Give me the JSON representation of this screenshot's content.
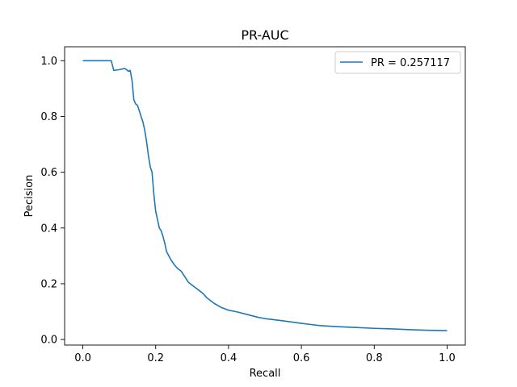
{
  "chart_data": {
    "type": "line",
    "title": "PR-AUC",
    "xlabel": "Recall",
    "ylabel": "Pecision",
    "xlim": [
      -0.05,
      1.05
    ],
    "ylim": [
      -0.02,
      1.05
    ],
    "xticks": [
      0.0,
      0.2,
      0.4,
      0.6,
      0.8,
      1.0
    ],
    "xtick_labels": [
      "0.0",
      "0.2",
      "0.4",
      "0.6",
      "0.8",
      "1.0"
    ],
    "yticks": [
      0.0,
      0.2,
      0.4,
      0.6,
      0.8,
      1.0
    ],
    "ytick_labels": [
      "0.0",
      "0.2",
      "0.4",
      "0.6",
      "0.8",
      "1.0"
    ],
    "grid": false,
    "legend_position": "top-right",
    "series": [
      {
        "name": "PR = 0.257117",
        "color": "#1f77b4",
        "points": [
          [
            0.0,
            1.0
          ],
          [
            0.03,
            1.0
          ],
          [
            0.06,
            1.0
          ],
          [
            0.078,
            1.0
          ],
          [
            0.085,
            0.965
          ],
          [
            0.1,
            0.968
          ],
          [
            0.115,
            0.972
          ],
          [
            0.12,
            0.968
          ],
          [
            0.125,
            0.962
          ],
          [
            0.13,
            0.965
          ],
          [
            0.135,
            0.93
          ],
          [
            0.14,
            0.86
          ],
          [
            0.145,
            0.845
          ],
          [
            0.15,
            0.84
          ],
          [
            0.155,
            0.82
          ],
          [
            0.16,
            0.8
          ],
          [
            0.165,
            0.78
          ],
          [
            0.17,
            0.75
          ],
          [
            0.175,
            0.71
          ],
          [
            0.18,
            0.66
          ],
          [
            0.185,
            0.62
          ],
          [
            0.19,
            0.6
          ],
          [
            0.195,
            0.52
          ],
          [
            0.2,
            0.46
          ],
          [
            0.205,
            0.43
          ],
          [
            0.21,
            0.4
          ],
          [
            0.215,
            0.39
          ],
          [
            0.22,
            0.37
          ],
          [
            0.225,
            0.345
          ],
          [
            0.23,
            0.315
          ],
          [
            0.24,
            0.29
          ],
          [
            0.25,
            0.27
          ],
          [
            0.26,
            0.255
          ],
          [
            0.27,
            0.245
          ],
          [
            0.28,
            0.225
          ],
          [
            0.29,
            0.205
          ],
          [
            0.3,
            0.195
          ],
          [
            0.31,
            0.185
          ],
          [
            0.32,
            0.175
          ],
          [
            0.33,
            0.165
          ],
          [
            0.34,
            0.15
          ],
          [
            0.35,
            0.14
          ],
          [
            0.36,
            0.13
          ],
          [
            0.38,
            0.115
          ],
          [
            0.4,
            0.105
          ],
          [
            0.42,
            0.1
          ],
          [
            0.45,
            0.09
          ],
          [
            0.48,
            0.08
          ],
          [
            0.5,
            0.075
          ],
          [
            0.55,
            0.067
          ],
          [
            0.6,
            0.058
          ],
          [
            0.65,
            0.05
          ],
          [
            0.7,
            0.046
          ],
          [
            0.75,
            0.043
          ],
          [
            0.8,
            0.04
          ],
          [
            0.85,
            0.038
          ],
          [
            0.9,
            0.035
          ],
          [
            0.95,
            0.033
          ],
          [
            1.0,
            0.032
          ]
        ]
      }
    ]
  }
}
